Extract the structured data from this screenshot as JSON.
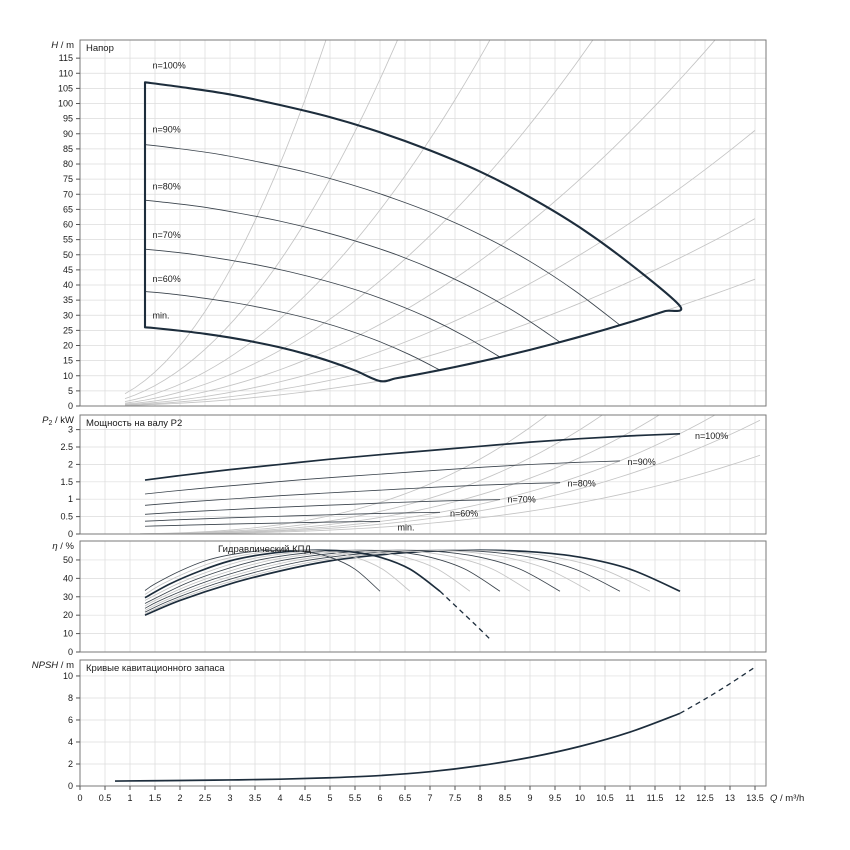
{
  "page": {
    "background": "#ffffff"
  },
  "colors": {
    "grid": "#dcdcdc",
    "border": "#7a7a7a",
    "tick": "#555555",
    "text": "#1a1a1a",
    "curve_dark": "#1d2d3c",
    "curve_thin": "#3a434c",
    "curve_gray": "#c4c4c4"
  },
  "x_axis": {
    "label_var": "Q",
    "label_unit": "m³/h",
    "xlim": [
      0,
      13.72
    ],
    "xticks": [
      0,
      0.5,
      1,
      1.5,
      2,
      2.5,
      3,
      3.5,
      4,
      4.5,
      5,
      5.5,
      6,
      6.5,
      7,
      7.5,
      8,
      8.5,
      9,
      9.5,
      10,
      10.5,
      11,
      11.5,
      12,
      12.5,
      13,
      13.5
    ]
  },
  "chart_data": [
    {
      "id": "head",
      "type": "line",
      "title": "Напор",
      "ylabel_var": "H",
      "ylabel_unit": "m",
      "ylim": [
        0,
        121
      ],
      "yticks": [
        0,
        5,
        10,
        15,
        20,
        25,
        30,
        35,
        40,
        45,
        50,
        55,
        60,
        65,
        70,
        75,
        80,
        85,
        90,
        95,
        100,
        105,
        110,
        115
      ],
      "value_exponent": 2,
      "q_start": 1.3,
      "base_curve": {
        "q": [
          1.3,
          2,
          3,
          4,
          5,
          6,
          7,
          8,
          9,
          10,
          11,
          12
        ],
        "v": [
          107,
          105.5,
          103,
          99.5,
          95.5,
          90.5,
          84.5,
          77.5,
          69,
          59,
          47,
          33
        ]
      },
      "envelope": true,
      "speeds": [
        {
          "name": "n=90%",
          "s": 0.9,
          "style": "thin"
        },
        {
          "name": "n=80%",
          "s": 0.8,
          "style": "thin"
        },
        {
          "name": "n=70%",
          "s": 0.7,
          "style": "thin"
        },
        {
          "name": "n=60%",
          "s": 0.6,
          "style": "thin"
        }
      ],
      "gray_curves": {
        "exponent": 2,
        "k": [
          0.23,
          0.34,
          0.5,
          0.75,
          1.15,
          1.8,
          3.0,
          5.0
        ],
        "q_start": 0.9
      },
      "curve_labels": [
        {
          "text": "n=100%",
          "q": 1.45,
          "v": 111.5
        },
        {
          "text": "n=90%",
          "q": 1.45,
          "v": 90.5
        },
        {
          "text": "n=80%",
          "q": 1.45,
          "v": 71.5
        },
        {
          "text": "n=70%",
          "q": 1.45,
          "v": 55.5
        },
        {
          "text": "n=60%",
          "q": 1.45,
          "v": 41
        },
        {
          "text": "min.",
          "q": 1.45,
          "v": 29
        }
      ]
    },
    {
      "id": "power",
      "type": "line",
      "title": "Мощность на валу P2",
      "ylabel_var": "P",
      "ylabel_sub": "2",
      "ylabel_unit": "kW",
      "ylim": [
        0,
        3.42
      ],
      "yticks": [
        0,
        0.5,
        1,
        1.5,
        2,
        2.5,
        3
      ],
      "value_exponent": 3,
      "q_start": 1.3,
      "base_curve": {
        "q": [
          1.3,
          2,
          3,
          4,
          5,
          6,
          7,
          8,
          9,
          10,
          11,
          12
        ],
        "v": [
          1.55,
          1.68,
          1.85,
          2.0,
          2.15,
          2.28,
          2.4,
          2.52,
          2.64,
          2.74,
          2.82,
          2.88
        ]
      },
      "envelope": false,
      "speeds": [
        {
          "name": "n=100%",
          "s": 1,
          "style": "dark"
        },
        {
          "name": "n=90%",
          "s": 0.9,
          "style": "thin"
        },
        {
          "name": "n=80%",
          "s": 0.8,
          "style": "thin"
        },
        {
          "name": "n=70%",
          "s": 0.7,
          "style": "thin"
        },
        {
          "name": "n=60%",
          "s": 0.6,
          "style": "thin"
        },
        {
          "name": "min",
          "s": 0.5,
          "style": "thin"
        }
      ],
      "gray_curves": {
        "exponent": 3,
        "k": [
          0.0009,
          0.0013,
          0.00167,
          0.0022,
          0.003,
          0.0042
        ],
        "q_start": 1.2
      },
      "curve_labels": [
        {
          "text": "n=100%",
          "q": 12.3,
          "v": 2.73
        },
        {
          "text": "n=90%",
          "q": 10.95,
          "v": 1.98
        },
        {
          "text": "n=80%",
          "q": 9.75,
          "v": 1.36
        },
        {
          "text": "n=70%",
          "q": 8.55,
          "v": 0.9
        },
        {
          "text": "n=60%",
          "q": 7.4,
          "v": 0.5
        },
        {
          "text": "min.",
          "q": 6.35,
          "v": 0.1
        }
      ]
    },
    {
      "id": "efficiency",
      "type": "line",
      "title": "Гидравлический КПД",
      "title_q": 2.76,
      "ylabel_var": "η",
      "ylabel_unit": "%",
      "ylim": [
        0,
        60.3
      ],
      "yticks": [
        0,
        10,
        20,
        30,
        40,
        50
      ],
      "value_exponent": 0,
      "q_start": 1.3,
      "base_curve": {
        "q": [
          1.3,
          2,
          3,
          4,
          5,
          6,
          7,
          8,
          9,
          10,
          11,
          12
        ],
        "v": [
          20,
          28,
          37,
          44,
          49.5,
          52.8,
          54.7,
          55.3,
          54.5,
          51.5,
          45,
          33
        ]
      },
      "envelope": false,
      "speeds": [
        {
          "name": "n=100%",
          "s": 1,
          "style": "dark"
        },
        {
          "name": "n=95%",
          "s": 0.95,
          "style": "gray"
        },
        {
          "name": "n=90%",
          "s": 0.9,
          "style": "thin"
        },
        {
          "name": "n=85%",
          "s": 0.85,
          "style": "gray"
        },
        {
          "name": "n=80%",
          "s": 0.8,
          "style": "thin"
        },
        {
          "name": "n=75%",
          "s": 0.75,
          "style": "gray"
        },
        {
          "name": "n=70%",
          "s": 0.7,
          "style": "thin"
        },
        {
          "name": "n=65%",
          "s": 0.65,
          "style": "gray"
        },
        {
          "name": "n=60%",
          "s": 0.6,
          "style": "dark"
        },
        {
          "name": "n=55%",
          "s": 0.55,
          "style": "gray"
        },
        {
          "name": "min",
          "s": 0.5,
          "style": "thin"
        }
      ],
      "extra_series": [
        {
          "name": "n60-extrapolation",
          "style": "dark",
          "dash": true,
          "points": [
            [
              7.2,
              33
            ],
            [
              7.55,
              24
            ],
            [
              7.9,
              15
            ],
            [
              8.2,
              7
            ]
          ]
        }
      ],
      "curve_labels": []
    },
    {
      "id": "npsh",
      "type": "line",
      "title": "Кривые кавитационного запаса",
      "ylabel_var": "NPSH",
      "ylabel_unit": "m",
      "ylim": [
        0,
        11.45
      ],
      "yticks": [
        0,
        2,
        4,
        6,
        8,
        10
      ],
      "extra_series": [
        {
          "name": "npsh-curve",
          "style": "dark",
          "points": [
            [
              0.7,
              0.45
            ],
            [
              2,
              0.5
            ],
            [
              3,
              0.55
            ],
            [
              4,
              0.62
            ],
            [
              5,
              0.75
            ],
            [
              6,
              0.95
            ],
            [
              7,
              1.3
            ],
            [
              8,
              1.85
            ],
            [
              9,
              2.6
            ],
            [
              10,
              3.6
            ],
            [
              11,
              4.9
            ],
            [
              12,
              6.6
            ]
          ]
        },
        {
          "name": "npsh-extrapolation",
          "style": "dark",
          "dash": true,
          "points": [
            [
              12,
              6.6
            ],
            [
              12.5,
              7.9
            ],
            [
              13,
              9.3
            ],
            [
              13.5,
              10.8
            ]
          ]
        }
      ],
      "curve_labels": []
    }
  ]
}
